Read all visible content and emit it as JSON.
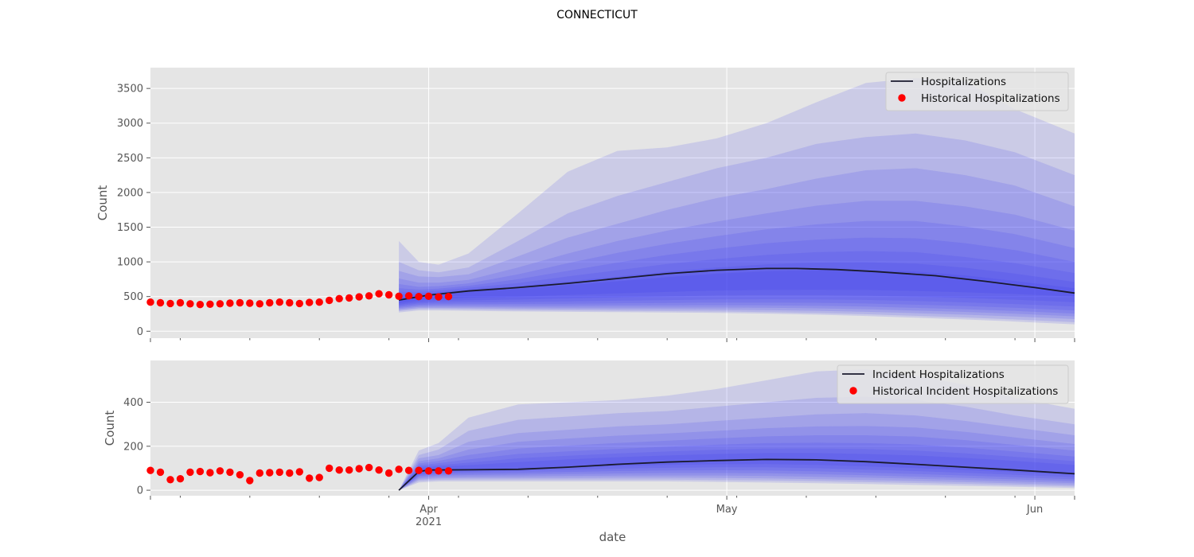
{
  "title": "CONNECTICUT",
  "colors": {
    "band": "#3333ee",
    "median": "#1a1a2e",
    "historical": "#ff0000",
    "panel_bg": "#e5e5e5",
    "grid": "#ffffff"
  },
  "x_axis": {
    "label": "date",
    "ticks": [
      {
        "date": "2021-04-01",
        "label": "Apr",
        "sublabel": "2021"
      },
      {
        "date": "2021-05-01",
        "label": "May",
        "sublabel": ""
      },
      {
        "date": "2021-06-01",
        "label": "Jun",
        "sublabel": ""
      }
    ],
    "range": [
      "2021-03-04",
      "2021-06-05"
    ]
  },
  "chart_data": [
    {
      "type": "area",
      "ylabel": "Count",
      "ylim": [
        -100,
        3800
      ],
      "yticks": [
        0,
        500,
        1000,
        1500,
        2000,
        2500,
        3000,
        3500
      ],
      "grid": true,
      "legend_position": "top-right",
      "legend": [
        "Hospitalizations",
        "Historical Hospitalizations"
      ],
      "historical": {
        "name": "Historical Hospitalizations",
        "dates": [
          "2021-03-04",
          "2021-03-05",
          "2021-03-06",
          "2021-03-07",
          "2021-03-08",
          "2021-03-09",
          "2021-03-10",
          "2021-03-11",
          "2021-03-12",
          "2021-03-13",
          "2021-03-14",
          "2021-03-15",
          "2021-03-16",
          "2021-03-17",
          "2021-03-18",
          "2021-03-19",
          "2021-03-20",
          "2021-03-21",
          "2021-03-22",
          "2021-03-23",
          "2021-03-24",
          "2021-03-25",
          "2021-03-26",
          "2021-03-27",
          "2021-03-28",
          "2021-03-29",
          "2021-03-30",
          "2021-03-31",
          "2021-04-01",
          "2021-04-02",
          "2021-04-03"
        ],
        "values": [
          420,
          410,
          400,
          410,
          395,
          385,
          390,
          395,
          405,
          410,
          405,
          395,
          410,
          420,
          410,
          400,
          415,
          420,
          445,
          470,
          480,
          495,
          510,
          540,
          525,
          505,
          510,
          500,
          505,
          495,
          500
        ]
      },
      "median": {
        "name": "Hospitalizations",
        "dates": [
          "2021-03-29",
          "2021-04-01",
          "2021-04-05",
          "2021-04-10",
          "2021-04-15",
          "2021-04-20",
          "2021-04-25",
          "2021-04-30",
          "2021-05-05",
          "2021-05-08",
          "2021-05-12",
          "2021-05-16",
          "2021-05-22",
          "2021-05-27",
          "2021-06-01",
          "2021-06-05"
        ],
        "values": [
          450,
          520,
          580,
          630,
          690,
          760,
          830,
          880,
          905,
          905,
          890,
          860,
          800,
          720,
          630,
          550
        ]
      },
      "bands_dates": [
        "2021-03-29",
        "2021-03-31",
        "2021-04-02",
        "2021-04-05",
        "2021-04-10",
        "2021-04-15",
        "2021-04-20",
        "2021-04-25",
        "2021-04-30",
        "2021-05-05",
        "2021-05-10",
        "2021-05-15",
        "2021-05-20",
        "2021-05-25",
        "2021-05-30",
        "2021-06-05"
      ],
      "bands": [
        {
          "lower": [
            270,
            300,
            300,
            295,
            285,
            280,
            275,
            270,
            265,
            255,
            240,
            220,
            195,
            170,
            140,
            100
          ],
          "upper": [
            1300,
            1000,
            960,
            1120,
            1700,
            2300,
            2600,
            2650,
            2780,
            3000,
            3300,
            3580,
            3650,
            3600,
            3200,
            2850
          ]
        },
        {
          "lower": [
            290,
            320,
            320,
            315,
            305,
            300,
            295,
            290,
            285,
            275,
            262,
            245,
            222,
            198,
            170,
            130
          ],
          "upper": [
            1000,
            880,
            850,
            920,
            1300,
            1700,
            1950,
            2150,
            2350,
            2500,
            2700,
            2800,
            2850,
            2750,
            2580,
            2250
          ]
        },
        {
          "lower": [
            305,
            335,
            335,
            332,
            325,
            320,
            318,
            315,
            312,
            305,
            295,
            280,
            260,
            238,
            212,
            175
          ],
          "upper": [
            870,
            790,
            780,
            820,
            1080,
            1350,
            1550,
            1750,
            1920,
            2050,
            2200,
            2320,
            2350,
            2250,
            2100,
            1800
          ]
        },
        {
          "lower": [
            320,
            350,
            352,
            350,
            345,
            342,
            342,
            342,
            342,
            338,
            330,
            317,
            298,
            278,
            252,
            215
          ],
          "upper": [
            760,
            700,
            700,
            740,
            920,
            1120,
            1300,
            1450,
            1580,
            1700,
            1810,
            1880,
            1880,
            1800,
            1680,
            1450
          ]
        },
        {
          "lower": [
            335,
            365,
            370,
            370,
            368,
            368,
            370,
            372,
            375,
            373,
            367,
            355,
            337,
            317,
            292,
            255
          ],
          "upper": [
            680,
            640,
            650,
            690,
            820,
            980,
            1130,
            1260,
            1370,
            1470,
            1540,
            1590,
            1590,
            1510,
            1400,
            1200
          ]
        },
        {
          "lower": [
            350,
            382,
            390,
            392,
            393,
            396,
            402,
            408,
            414,
            414,
            410,
            400,
            383,
            363,
            338,
            300
          ],
          "upper": [
            620,
            600,
            615,
            655,
            750,
            870,
            990,
            1100,
            1190,
            1270,
            1320,
            1350,
            1340,
            1270,
            1170,
            1000
          ]
        },
        {
          "lower": [
            368,
            400,
            412,
            417,
            422,
            430,
            440,
            450,
            460,
            462,
            460,
            452,
            436,
            416,
            392,
            355
          ],
          "upper": [
            570,
            568,
            585,
            625,
            695,
            790,
            880,
            970,
            1040,
            1100,
            1140,
            1155,
            1140,
            1070,
            980,
            840
          ]
        },
        {
          "lower": [
            385,
            420,
            436,
            446,
            458,
            472,
            487,
            502,
            516,
            520,
            520,
            514,
            499,
            479,
            455,
            420
          ],
          "upper": [
            530,
            540,
            560,
            600,
            650,
            720,
            790,
            860,
            920,
            965,
            990,
            995,
            975,
            915,
            830,
            710
          ]
        },
        {
          "lower": [
            405,
            445,
            465,
            482,
            500,
            522,
            545,
            567,
            587,
            595,
            598,
            595,
            581,
            561,
            537,
            500
          ],
          "upper": [
            495,
            515,
            540,
            575,
            615,
            665,
            720,
            780,
            830,
            865,
            880,
            880,
            860,
            805,
            725,
            620
          ]
        }
      ]
    },
    {
      "type": "area",
      "ylabel": "Count",
      "ylim": [
        -25,
        590
      ],
      "yticks": [
        0,
        200,
        400
      ],
      "grid": true,
      "legend_position": "top-right",
      "legend": [
        "Incident Hospitalizations",
        "Historical Incident Hospitalizations"
      ],
      "historical": {
        "name": "Historical Incident Hospitalizations",
        "dates": [
          "2021-03-04",
          "2021-03-05",
          "2021-03-06",
          "2021-03-07",
          "2021-03-08",
          "2021-03-09",
          "2021-03-10",
          "2021-03-11",
          "2021-03-12",
          "2021-03-13",
          "2021-03-14",
          "2021-03-15",
          "2021-03-16",
          "2021-03-17",
          "2021-03-18",
          "2021-03-19",
          "2021-03-20",
          "2021-03-21",
          "2021-03-22",
          "2021-03-23",
          "2021-03-24",
          "2021-03-25",
          "2021-03-26",
          "2021-03-27",
          "2021-03-28",
          "2021-03-29",
          "2021-03-30",
          "2021-03-31",
          "2021-04-01",
          "2021-04-02",
          "2021-04-03"
        ],
        "values": [
          90,
          82,
          48,
          52,
          82,
          85,
          80,
          88,
          82,
          70,
          44,
          78,
          80,
          82,
          78,
          84,
          55,
          58,
          100,
          92,
          92,
          98,
          103,
          92,
          78,
          95,
          90,
          90,
          88,
          88,
          88
        ]
      },
      "median": {
        "name": "Incident Hospitalizations",
        "dates": [
          "2021-03-29",
          "2021-03-31",
          "2021-04-01",
          "2021-04-05",
          "2021-04-10",
          "2021-04-15",
          "2021-04-20",
          "2021-04-25",
          "2021-04-30",
          "2021-05-05",
          "2021-05-10",
          "2021-05-15",
          "2021-05-20",
          "2021-05-25",
          "2021-05-30",
          "2021-06-05"
        ],
        "values": [
          0,
          85,
          92,
          93,
          95,
          105,
          118,
          128,
          135,
          140,
          138,
          130,
          118,
          105,
          92,
          75
        ]
      },
      "bands_dates": [
        "2021-03-29",
        "2021-03-31",
        "2021-04-02",
        "2021-04-05",
        "2021-04-10",
        "2021-04-15",
        "2021-04-20",
        "2021-04-25",
        "2021-04-30",
        "2021-05-05",
        "2021-05-10",
        "2021-05-15",
        "2021-05-20",
        "2021-05-25",
        "2021-05-30",
        "2021-06-05"
      ],
      "bands": [
        {
          "lower": [
            0,
            35,
            40,
            40,
            40,
            40,
            40,
            40,
            38,
            35,
            32,
            28,
            24,
            20,
            16,
            10
          ],
          "upper": [
            0,
            180,
            215,
            330,
            390,
            400,
            410,
            430,
            460,
            500,
            540,
            550,
            520,
            480,
            420,
            370
          ]
        },
        {
          "lower": [
            0,
            42,
            47,
            48,
            48,
            48,
            48,
            48,
            46,
            44,
            41,
            37,
            33,
            28,
            23,
            17
          ],
          "upper": [
            0,
            160,
            185,
            270,
            320,
            335,
            350,
            360,
            380,
            400,
            420,
            425,
            410,
            380,
            340,
            300
          ]
        },
        {
          "lower": [
            0,
            48,
            54,
            55,
            55,
            56,
            57,
            57,
            56,
            54,
            50,
            46,
            42,
            37,
            31,
            24
          ],
          "upper": [
            0,
            145,
            160,
            220,
            260,
            275,
            290,
            300,
            315,
            330,
            345,
            350,
            340,
            315,
            285,
            250
          ]
        },
        {
          "lower": [
            0,
            54,
            60,
            62,
            63,
            65,
            66,
            67,
            67,
            65,
            61,
            57,
            52,
            46,
            40,
            32
          ],
          "upper": [
            0,
            132,
            145,
            185,
            220,
            235,
            248,
            258,
            270,
            282,
            290,
            292,
            285,
            265,
            240,
            210
          ]
        },
        {
          "lower": [
            0,
            60,
            67,
            69,
            71,
            74,
            76,
            78,
            78,
            77,
            73,
            68,
            62,
            56,
            49,
            40
          ],
          "upper": [
            0,
            122,
            133,
            160,
            190,
            203,
            215,
            225,
            236,
            245,
            250,
            250,
            244,
            228,
            206,
            180
          ]
        },
        {
          "lower": [
            0,
            65,
            73,
            76,
            79,
            83,
            87,
            90,
            91,
            90,
            86,
            80,
            74,
            67,
            59,
            49
          ],
          "upper": [
            0,
            114,
            123,
            140,
            165,
            177,
            188,
            198,
            207,
            214,
            216,
            214,
            208,
            194,
            176,
            153
          ]
        },
        {
          "lower": [
            0,
            70,
            79,
            83,
            87,
            93,
            98,
            102,
            104,
            104,
            100,
            94,
            87,
            79,
            70,
            59
          ],
          "upper": [
            0,
            107,
            114,
            125,
            145,
            157,
            167,
            176,
            184,
            189,
            190,
            187,
            180,
            168,
            152,
            132
          ]
        },
        {
          "lower": [
            0,
            75,
            85,
            89,
            95,
            103,
            110,
            115,
            118,
            119,
            115,
            109,
            101,
            92,
            82,
            69
          ],
          "upper": [
            0,
            101,
            107,
            114,
            128,
            140,
            150,
            158,
            165,
            169,
            169,
            165,
            158,
            147,
            133,
            115
          ]
        }
      ]
    }
  ]
}
